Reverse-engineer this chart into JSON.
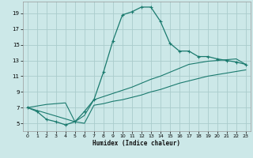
{
  "title": "",
  "xlabel": "Humidex (Indice chaleur)",
  "bg_color": "#cce8e8",
  "grid_color": "#aacccc",
  "line_color": "#1a7a6e",
  "xlim": [
    -0.5,
    23.5
  ],
  "ylim": [
    4.0,
    20.5
  ],
  "xticks": [
    0,
    1,
    2,
    3,
    4,
    5,
    6,
    7,
    8,
    9,
    10,
    11,
    12,
    13,
    14,
    15,
    16,
    17,
    18,
    19,
    20,
    21,
    22,
    23
  ],
  "yticks": [
    5,
    7,
    9,
    11,
    13,
    15,
    17,
    19
  ],
  "series1_x": [
    0,
    1,
    2,
    3,
    4,
    5,
    6,
    7,
    8,
    9,
    10,
    11,
    12,
    13,
    14,
    15,
    16,
    17,
    18,
    19,
    20,
    21,
    22,
    23
  ],
  "series1_y": [
    7,
    6.5,
    5.5,
    5.2,
    4.8,
    5.2,
    6.5,
    8.0,
    11.5,
    15.5,
    18.8,
    19.2,
    19.8,
    19.8,
    18.0,
    15.2,
    14.2,
    14.2,
    13.5,
    13.5,
    13.2,
    13.0,
    12.8,
    12.5
  ],
  "series2_x": [
    0,
    1,
    2,
    3,
    4,
    5,
    6,
    7,
    8,
    9,
    10,
    11,
    12,
    13,
    14,
    15,
    16,
    17,
    18,
    19,
    20,
    21,
    22,
    23
  ],
  "series2_y": [
    7,
    7.2,
    7.4,
    7.5,
    7.6,
    5.2,
    6.0,
    8.0,
    8.4,
    8.8,
    9.2,
    9.6,
    10.1,
    10.6,
    11.0,
    11.5,
    12.0,
    12.5,
    12.7,
    12.9,
    13.0,
    13.1,
    13.2,
    12.5
  ],
  "series3_x": [
    0,
    5,
    6,
    7,
    8,
    9,
    10,
    11,
    12,
    13,
    14,
    15,
    16,
    17,
    18,
    19,
    20,
    21,
    22,
    23
  ],
  "series3_y": [
    7,
    5.2,
    5.0,
    7.3,
    7.5,
    7.8,
    8.0,
    8.3,
    8.6,
    9.0,
    9.3,
    9.7,
    10.1,
    10.4,
    10.7,
    11.0,
    11.2,
    11.4,
    11.6,
    11.8
  ]
}
